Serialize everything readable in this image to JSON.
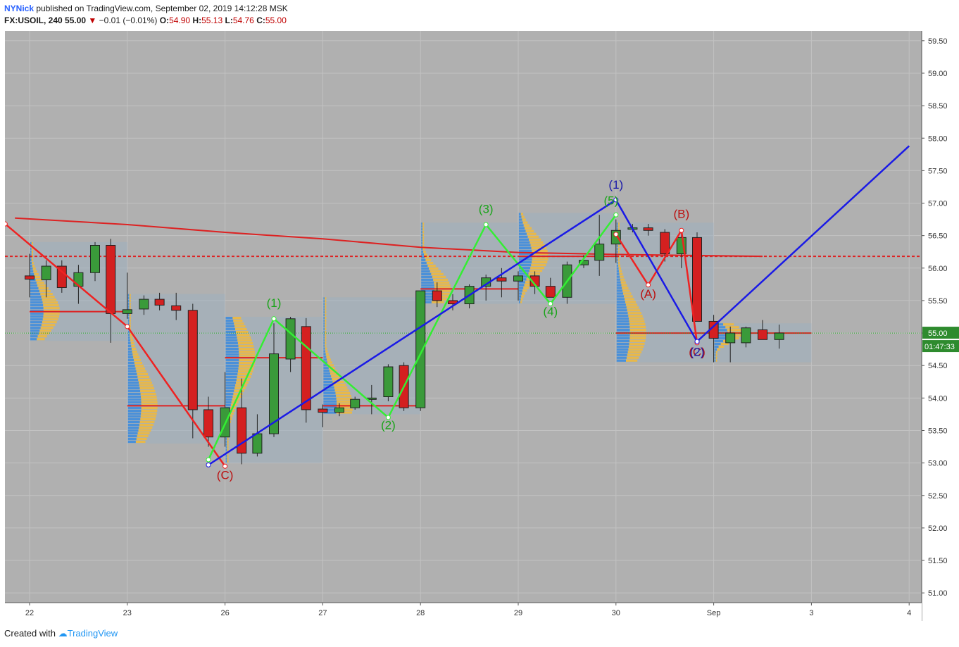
{
  "header": {
    "author": "NYNick",
    "published": "published on TradingView.com, September 02, 2019 14:12:28 MSK",
    "symbol": "FX:USOIL, 240",
    "last": "55.00",
    "change": "−0.01 (−0.01%)",
    "o_label": "O:",
    "o_value": "54.90",
    "h_label": "H:",
    "h_value": "55.13",
    "l_label": "L:",
    "l_value": "54.76",
    "c_label": "C:",
    "c_value": "55.00"
  },
  "footer": {
    "created_with": "Created with",
    "brand": "TradingView"
  },
  "colors": {
    "plot_bg": "#b0b0b0",
    "up": "#3a9a3a",
    "down": "#d42020",
    "blue_wave": "#1a1ae6",
    "green_wave": "#33ee33",
    "red_wave": "#ee2222",
    "ma": "#dd2222",
    "volume_up": "#4a90d9",
    "volume_down": "#e8b84a"
  },
  "chart_data": {
    "type": "candlestick",
    "x_ticks": [
      "22",
      "23",
      "26",
      "27",
      "28",
      "29",
      "30",
      "Sep",
      "3",
      "4"
    ],
    "y_ticks": [
      "59.50",
      "59.00",
      "58.50",
      "58.00",
      "57.50",
      "57.00",
      "56.50",
      "56.00",
      "55.50",
      "55.00",
      "54.50",
      "54.00",
      "53.50",
      "53.00",
      "52.50",
      "52.00",
      "51.50",
      "51.00"
    ],
    "ylim": [
      50.85,
      59.65
    ],
    "price_label": "55.00",
    "timer_label": "01:47:33",
    "candles": [
      {
        "x": 0.0,
        "o": 55.88,
        "h": 56.22,
        "l": 55.55,
        "c": 55.83
      },
      {
        "x": 0.17,
        "o": 55.82,
        "h": 56.12,
        "l": 55.55,
        "c": 56.03
      },
      {
        "x": 0.33,
        "o": 56.03,
        "h": 56.12,
        "l": 55.62,
        "c": 55.7
      },
      {
        "x": 0.5,
        "o": 55.72,
        "h": 56.05,
        "l": 55.45,
        "c": 55.93
      },
      {
        "x": 0.67,
        "o": 55.93,
        "h": 56.4,
        "l": 55.8,
        "c": 56.35
      },
      {
        "x": 0.83,
        "o": 56.35,
        "h": 56.45,
        "l": 54.85,
        "c": 55.3
      },
      {
        "x": 1.0,
        "o": 55.3,
        "h": 55.93,
        "l": 55.22,
        "c": 55.36
      },
      {
        "x": 1.17,
        "o": 55.37,
        "h": 55.58,
        "l": 55.28,
        "c": 55.52
      },
      {
        "x": 1.33,
        "o": 55.52,
        "h": 55.62,
        "l": 55.35,
        "c": 55.43
      },
      {
        "x": 1.5,
        "o": 55.42,
        "h": 55.62,
        "l": 55.2,
        "c": 55.35
      },
      {
        "x": 1.67,
        "o": 55.35,
        "h": 55.45,
        "l": 53.38,
        "c": 53.82
      },
      {
        "x": 1.83,
        "o": 53.82,
        "h": 54.02,
        "l": 53.25,
        "c": 53.4
      },
      {
        "x": 2.0,
        "o": 53.4,
        "h": 54.4,
        "l": 53.25,
        "c": 53.85
      },
      {
        "x": 2.17,
        "o": 53.85,
        "h": 54.3,
        "l": 52.98,
        "c": 53.15
      },
      {
        "x": 2.33,
        "o": 53.15,
        "h": 53.75,
        "l": 53.1,
        "c": 53.45
      },
      {
        "x": 2.5,
        "o": 53.45,
        "h": 55.15,
        "l": 53.4,
        "c": 54.68
      },
      {
        "x": 2.67,
        "o": 54.6,
        "h": 55.25,
        "l": 54.4,
        "c": 55.22
      },
      {
        "x": 2.83,
        "o": 55.1,
        "h": 55.23,
        "l": 53.62,
        "c": 53.82
      },
      {
        "x": 3.0,
        "o": 53.83,
        "h": 53.9,
        "l": 53.55,
        "c": 53.78
      },
      {
        "x": 3.17,
        "o": 53.78,
        "h": 53.92,
        "l": 53.72,
        "c": 53.85
      },
      {
        "x": 3.33,
        "o": 53.85,
        "h": 54.02,
        "l": 53.82,
        "c": 53.98
      },
      {
        "x": 3.5,
        "o": 53.98,
        "h": 54.2,
        "l": 53.75,
        "c": 54.0
      },
      {
        "x": 3.67,
        "o": 54.02,
        "h": 54.52,
        "l": 53.95,
        "c": 54.48
      },
      {
        "x": 3.83,
        "o": 54.5,
        "h": 54.55,
        "l": 53.8,
        "c": 53.85
      },
      {
        "x": 4.0,
        "o": 53.85,
        "h": 55.65,
        "l": 53.8,
        "c": 55.65
      },
      {
        "x": 4.17,
        "o": 55.65,
        "h": 55.78,
        "l": 55.4,
        "c": 55.5
      },
      {
        "x": 4.33,
        "o": 55.5,
        "h": 55.6,
        "l": 55.35,
        "c": 55.45
      },
      {
        "x": 4.5,
        "o": 55.45,
        "h": 55.75,
        "l": 55.38,
        "c": 55.72
      },
      {
        "x": 4.67,
        "o": 55.72,
        "h": 55.9,
        "l": 55.5,
        "c": 55.85
      },
      {
        "x": 4.83,
        "o": 55.85,
        "h": 56.0,
        "l": 55.55,
        "c": 55.8
      },
      {
        "x": 5.0,
        "o": 55.8,
        "h": 55.95,
        "l": 55.5,
        "c": 55.88
      },
      {
        "x": 5.17,
        "o": 55.88,
        "h": 55.95,
        "l": 55.6,
        "c": 55.72
      },
      {
        "x": 5.33,
        "o": 55.72,
        "h": 55.85,
        "l": 55.55,
        "c": 55.55
      },
      {
        "x": 5.5,
        "o": 55.55,
        "h": 56.1,
        "l": 55.45,
        "c": 56.05
      },
      {
        "x": 5.67,
        "o": 56.05,
        "h": 56.2,
        "l": 56.0,
        "c": 56.12
      },
      {
        "x": 5.83,
        "o": 56.12,
        "h": 56.82,
        "l": 55.88,
        "c": 56.37
      },
      {
        "x": 6.0,
        "o": 56.37,
        "h": 56.75,
        "l": 56.08,
        "c": 56.58
      },
      {
        "x": 6.17,
        "o": 56.6,
        "h": 56.68,
        "l": 56.55,
        "c": 56.62
      },
      {
        "x": 6.33,
        "o": 56.62,
        "h": 56.68,
        "l": 56.5,
        "c": 56.58
      },
      {
        "x": 6.5,
        "o": 56.55,
        "h": 56.6,
        "l": 56.1,
        "c": 56.22
      },
      {
        "x": 6.67,
        "o": 56.22,
        "h": 56.52,
        "l": 56.0,
        "c": 56.47
      },
      {
        "x": 6.83,
        "o": 56.47,
        "h": 56.55,
        "l": 55.18,
        "c": 55.18
      },
      {
        "x": 7.0,
        "o": 55.18,
        "h": 55.28,
        "l": 54.55,
        "c": 54.92
      },
      {
        "x": 7.17,
        "o": 54.85,
        "h": 55.1,
        "l": 54.55,
        "c": 55.0
      },
      {
        "x": 7.33,
        "o": 54.85,
        "h": 55.1,
        "l": 54.78,
        "c": 55.08
      },
      {
        "x": 7.5,
        "o": 55.05,
        "h": 55.2,
        "l": 54.9,
        "c": 54.9
      },
      {
        "x": 7.67,
        "o": 54.9,
        "h": 55.13,
        "l": 54.76,
        "c": 55.0
      }
    ],
    "ma_line": [
      [
        -0.15,
        56.77
      ],
      [
        1.0,
        56.67
      ],
      [
        2.0,
        56.55
      ],
      [
        3.0,
        56.45
      ],
      [
        4.0,
        56.32
      ],
      [
        5.0,
        56.24
      ],
      [
        6.0,
        56.21
      ],
      [
        7.0,
        56.19
      ],
      [
        7.5,
        56.18
      ]
    ],
    "wave_blue": [
      [
        1.83,
        52.97
      ],
      [
        6.0,
        57.05
      ],
      [
        6.83,
        54.87
      ],
      [
        9.0,
        57.88
      ]
    ],
    "wave_green": [
      [
        1.83,
        53.05
      ],
      [
        2.5,
        55.22
      ],
      [
        3.67,
        53.7
      ],
      [
        4.67,
        56.67
      ],
      [
        5.33,
        55.45
      ],
      [
        6.0,
        56.82
      ]
    ],
    "wave_red_left": [
      [
        -0.25,
        56.68
      ],
      [
        1.0,
        55.1
      ],
      [
        2.0,
        52.95
      ]
    ],
    "wave_red_right": [
      [
        6.0,
        56.52
      ],
      [
        6.33,
        55.74
      ],
      [
        6.67,
        56.58
      ],
      [
        6.83,
        54.85
      ]
    ],
    "wave_labels": [
      {
        "text": "(1)",
        "x": 6.0,
        "y": 57.22,
        "color": "blue"
      },
      {
        "text": "(1)",
        "x": 2.5,
        "y": 55.4,
        "color": "green"
      },
      {
        "text": "(2)",
        "x": 3.67,
        "y": 53.52,
        "color": "green"
      },
      {
        "text": "(3)",
        "x": 4.67,
        "y": 56.85,
        "color": "green"
      },
      {
        "text": "(4)",
        "x": 5.33,
        "y": 55.27,
        "color": "green"
      },
      {
        "text": "(5)",
        "x": 5.95,
        "y": 56.98,
        "color": "green"
      },
      {
        "text": "(C)",
        "x": 2.0,
        "y": 52.75,
        "color": "red"
      },
      {
        "text": "(A)",
        "x": 6.33,
        "y": 55.54,
        "color": "red"
      },
      {
        "text": "(B)",
        "x": 6.67,
        "y": 56.77,
        "color": "red"
      },
      {
        "text": "(C)",
        "x": 6.83,
        "y": 54.65,
        "color": "red"
      },
      {
        "text": "(2)",
        "x": 6.83,
        "y": 54.65,
        "color": "blue"
      }
    ],
    "horizontal_lines": [
      {
        "y": 56.18,
        "style": "dashed",
        "color": "ma"
      },
      {
        "y": 55.0,
        "style": "dotted",
        "color": "green_wave"
      }
    ],
    "volume_profiles": [
      {
        "x0": 0.0,
        "x1": 1.0,
        "ylo": 54.88,
        "yhi": 56.4,
        "poc": 55.33
      },
      {
        "x0": 1.0,
        "x1": 2.0,
        "ylo": 53.3,
        "yhi": 55.6,
        "poc": 53.88
      },
      {
        "x0": 2.0,
        "x1": 3.0,
        "ylo": 53.0,
        "yhi": 55.25,
        "poc": 54.62
      },
      {
        "x0": 3.0,
        "x1": 4.0,
        "ylo": 53.75,
        "yhi": 55.55,
        "poc": 53.88
      },
      {
        "x0": 4.0,
        "x1": 5.0,
        "ylo": 55.45,
        "yhi": 56.7,
        "poc": 55.68
      },
      {
        "x0": 5.0,
        "x1": 6.0,
        "ylo": 55.45,
        "yhi": 56.85,
        "poc": 56.18
      },
      {
        "x0": 6.0,
        "x1": 7.0,
        "ylo": 54.55,
        "yhi": 56.7,
        "poc": 55.0
      },
      {
        "x0": 7.0,
        "x1": 8.0,
        "ylo": 54.55,
        "yhi": 55.15,
        "poc": 55.0
      }
    ]
  }
}
